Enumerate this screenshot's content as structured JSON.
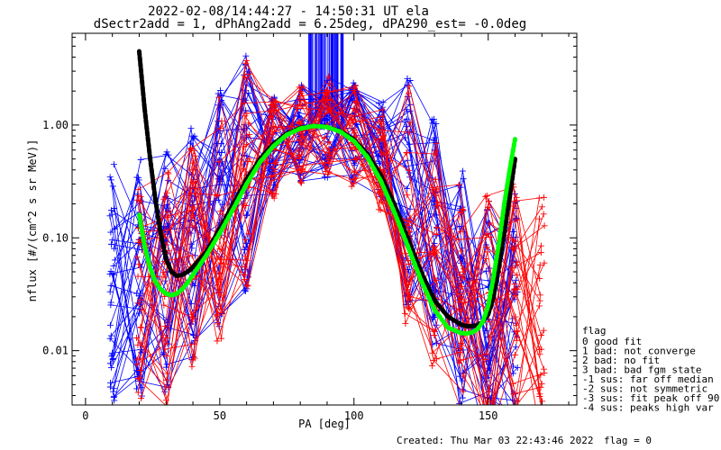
{
  "title": {
    "line1": "2022-02-08/14:44:27 - 14:50:31 UT ela",
    "line2": "dSectr2add = 1, dPhAng2add = 6.25deg, dPA290_est=  -0.0deg"
  },
  "footer": {
    "created": "Created: Thu Mar 03 22:43:46 2022",
    "flag": "flag = 0"
  },
  "legend": {
    "title": "flag",
    "entries": [
      " 0 good fit",
      " 1 bad: not converge",
      " 2 bad: no fit",
      " 3 bad: bad fgm state",
      "-1 sus: far off median",
      "-2 sus: not symmetric",
      "-3 sus: fit peak off 90",
      "-4 sus: peaks high var"
    ]
  },
  "chart_data": {
    "type": "line",
    "title": "2022-02-08/14:44:27 - 14:50:31 UT ela",
    "subtitle": "dSectr2add = 1, dPhAng2add = 6.25deg, dPA290_est=  -0.0deg",
    "xlabel": "PA [deg]",
    "ylabel": "nflux [#/(cm^2 s sr MeV)]",
    "xlim": [
      -5,
      183
    ],
    "ylim": [
      0.0033,
      6.5
    ],
    "yscale": "log",
    "grid": false,
    "legend_position": "right",
    "x_ticks": [
      0,
      50,
      100,
      150
    ],
    "x_tick_labels": [
      "0",
      "50",
      "100",
      "150"
    ],
    "y_ticks": [
      0.01,
      0.1,
      1.0
    ],
    "y_tick_labels": [
      "0.01",
      "0.10",
      "1.00"
    ],
    "series": [
      {
        "role": "measured-spectra-blue",
        "color": "#0000ff",
        "count": 40,
        "x": [
          10,
          20,
          30,
          40,
          50,
          60,
          70,
          80,
          90,
          100,
          110,
          120,
          130,
          140,
          150,
          160
        ],
        "typical_y": [
          0.04,
          0.04,
          0.05,
          0.1,
          0.2,
          0.4,
          0.65,
          0.85,
          0.95,
          0.85,
          0.6,
          0.3,
          0.1,
          0.04,
          0.02,
          0.02
        ],
        "vertical_spikes_at_peak": true
      },
      {
        "role": "measured-spectra-red",
        "color": "#ff0000",
        "count": 30,
        "x": [
          20,
          30,
          40,
          50,
          60,
          70,
          80,
          90,
          100,
          110,
          120,
          130,
          140,
          150,
          160,
          170
        ],
        "typical_y": [
          0.03,
          0.035,
          0.06,
          0.15,
          0.35,
          0.6,
          0.85,
          1.0,
          0.8,
          0.5,
          0.2,
          0.06,
          0.025,
          0.02,
          0.025,
          0.02
        ]
      },
      {
        "role": "fit-black",
        "color": "#000000",
        "x": [
          20,
          22,
          24,
          26,
          28,
          30,
          32,
          34,
          36,
          38,
          40,
          45,
          50,
          55,
          60,
          65,
          70,
          75,
          80,
          85,
          90,
          95,
          100,
          105,
          110,
          115,
          120,
          125,
          130,
          135,
          140,
          142,
          144,
          146,
          148,
          150,
          152,
          154,
          156,
          158,
          160
        ],
        "y": [
          4.5,
          1.4,
          0.52,
          0.22,
          0.11,
          0.065,
          0.05,
          0.046,
          0.047,
          0.05,
          0.055,
          0.075,
          0.12,
          0.2,
          0.33,
          0.5,
          0.68,
          0.84,
          0.94,
          0.98,
          0.96,
          0.88,
          0.74,
          0.55,
          0.36,
          0.2,
          0.1,
          0.05,
          0.028,
          0.02,
          0.017,
          0.0165,
          0.0165,
          0.0168,
          0.018,
          0.021,
          0.03,
          0.055,
          0.11,
          0.23,
          0.5
        ]
      },
      {
        "role": "fit-green",
        "color": "#00ff00",
        "x": [
          20,
          22,
          24,
          26,
          28,
          30,
          32,
          34,
          36,
          38,
          40,
          45,
          50,
          55,
          60,
          65,
          70,
          75,
          80,
          85,
          90,
          95,
          100,
          105,
          110,
          115,
          120,
          125,
          130,
          135,
          140,
          142,
          144,
          146,
          148,
          150,
          152,
          154,
          156,
          158,
          160
        ],
        "y": [
          0.16,
          0.085,
          0.055,
          0.041,
          0.035,
          0.032,
          0.031,
          0.032,
          0.035,
          0.04,
          0.047,
          0.07,
          0.11,
          0.18,
          0.3,
          0.47,
          0.65,
          0.82,
          0.93,
          0.98,
          0.96,
          0.87,
          0.72,
          0.52,
          0.32,
          0.17,
          0.085,
          0.042,
          0.023,
          0.016,
          0.0143,
          0.0142,
          0.0145,
          0.0155,
          0.018,
          0.025,
          0.045,
          0.09,
          0.2,
          0.4,
          0.75
        ]
      }
    ]
  }
}
